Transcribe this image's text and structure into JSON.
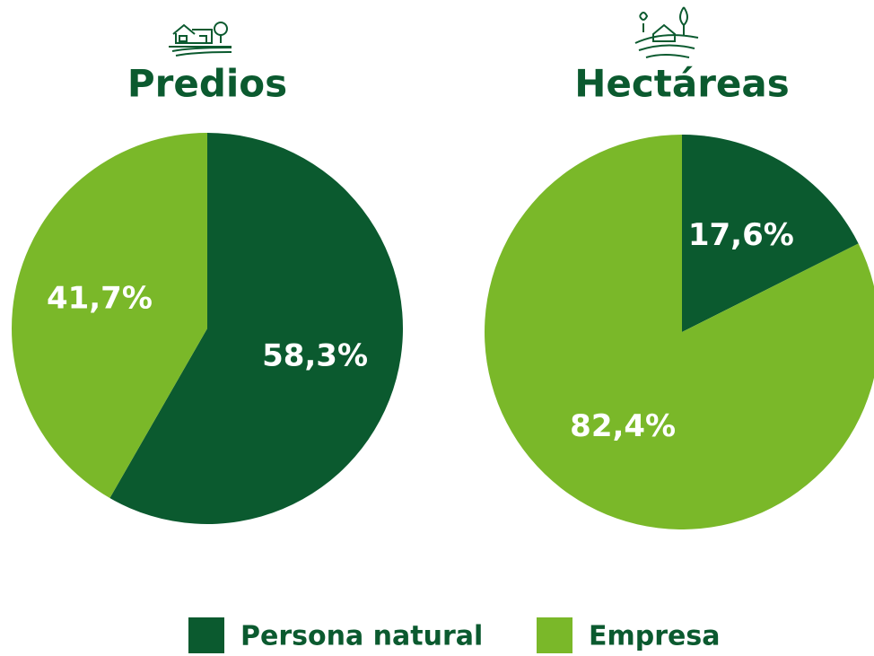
{
  "chart_data": [
    {
      "type": "pie",
      "title": "Predios",
      "values": [
        58.3,
        41.7
      ],
      "value_labels": [
        "58,3%",
        "41,7%"
      ]
    },
    {
      "type": "pie",
      "title": "Hectáreas",
      "values": [
        17.6,
        82.4
      ],
      "value_labels": [
        "17,6%",
        "82,4%"
      ]
    }
  ],
  "legend": {
    "items": [
      {
        "name": "Persona natural",
        "color": "#0b5a2f"
      },
      {
        "name": "Empresa",
        "color": "#7ab829"
      }
    ]
  }
}
